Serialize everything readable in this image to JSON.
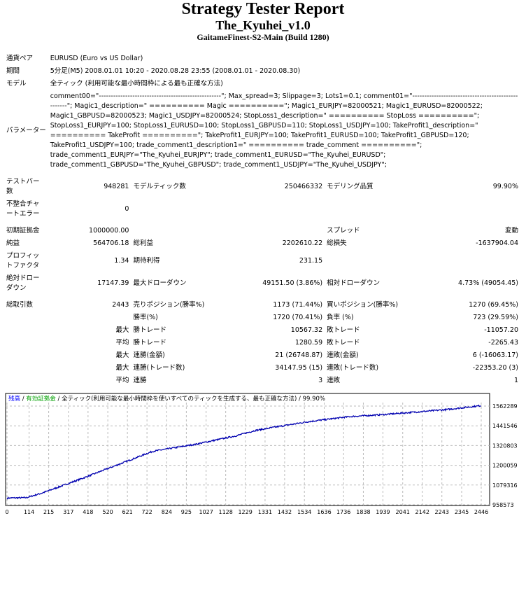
{
  "header": {
    "title": "Strategy Tester Report",
    "ea_name": "The_Kyuhei_v1.0",
    "server": "GaitameFinest-S2-Main (Build 1280)"
  },
  "info": [
    {
      "label": "通貨ペア",
      "value": "EURUSD (Euro vs US Dollar)"
    },
    {
      "label": "期間",
      "value": "5分足(M5) 2008.01.01 10:20 - 2020.08.28 23:55 (2008.01.01 - 2020.08.30)"
    },
    {
      "label": "モデル",
      "value": "全ティック (利用可能な最小時間枠による最も正確な方法)"
    },
    {
      "label": "パラメーター",
      "value": "comment00=\"---------------------------------------------------\"; Max_spread=3; Slippage=3; Lots1=0.1; comment01=\"---------------------------------------------------\"; Magic1_description=\" ========== Magic ==========\"; Magic1_EURJPY=82000521; Magic1_EURUSD=82000522; Magic1_GBPUSD=82000523; Magic1_USDJPY=82000524; StopLoss1_description=\" ========== StopLoss ==========\"; StopLoss1_EURJPY=100; StopLoss1_EURUSD=100; StopLoss1_GBPUSD=110; StopLoss1_USDJPY=100; TakeProfit1_description=\" ========== TakeProfit ==========\"; TakeProfit1_EURJPY=100; TakeProfit1_EURUSD=100; TakeProfit1_GBPUSD=120; TakeProfit1_USDJPY=100; trade_comment1_description1=\" ========== trade_comment ==========\"; trade_comment1_EURJPY=\"The_Kyuhei_EURJPY\"; trade_comment1_EURUSD=\"The_Kyuhei_EURUSD\"; trade_comment1_GBPUSD=\"The_Kyuhei_GBPUSD\"; trade_comment1_USDJPY=\"The_Kyuhei_USDJPY\";"
    }
  ],
  "stats": {
    "bars_label": "テストバー数",
    "bars": "948281",
    "ticks_label": "モデルティック数",
    "ticks": "250466332",
    "quality_label": "モデリング品質",
    "quality": "99.90%",
    "mismatch_label": "不整合チャートエラー",
    "mismatch": "0",
    "deposit_label": "初期証拠金",
    "deposit": "1000000.00",
    "spread_label": "スプレッド",
    "spread": "変動",
    "net_label": "純益",
    "net": "564706.18",
    "gross_profit_label": "総利益",
    "gross_profit": "2202610.22",
    "gross_loss_label": "総損失",
    "gross_loss": "-1637904.04",
    "pf_label": "プロフィットファクタ",
    "pf": "1.34",
    "expected_label": "期待利得",
    "expected": "231.15",
    "abs_dd_label": "絶対ドローダウン",
    "abs_dd": "17147.39",
    "max_dd_label": "最大ドローダウン",
    "max_dd": "49151.50 (3.86%)",
    "rel_dd_label": "相対ドローダウン",
    "rel_dd": "4.73% (49054.45)",
    "total_label": "総取引数",
    "total": "2443",
    "short_label": "売りポジション(勝率%)",
    "short": "1173 (71.44%)",
    "long_label": "買いポジション(勝率%)",
    "long": "1270 (69.45%)",
    "win_label": "勝率(%)",
    "win": "1720 (70.41%)",
    "loss_label": "負率 (%)",
    "loss": "723 (29.59%)",
    "max": "最大",
    "avg": "平均",
    "largest_win_label": "勝トレード",
    "largest_win": "10567.32",
    "largest_loss_label": "敗トレード",
    "largest_loss": "-11057.20",
    "avg_win_label": "勝トレード",
    "avg_win": "1280.59",
    "avg_loss_label": "敗トレード",
    "avg_loss": "-2265.43",
    "cons_win_amt_label": "連勝(金額)",
    "cons_win_amt": "21 (26748.87)",
    "cons_loss_amt_label": "連敗(金額)",
    "cons_loss_amt": "6 (-16063.17)",
    "cons_win_cnt_label": "連勝(トレード数)",
    "cons_win_cnt": "34147.95 (15)",
    "cons_loss_cnt_label": "連敗(トレード数)",
    "cons_loss_cnt": "-22353.20 (3)",
    "avg_cons_win_label": "連勝",
    "avg_cons_win": "3",
    "avg_cons_loss_label": "連敗",
    "avg_cons_loss": "1"
  },
  "chart_data": {
    "type": "line",
    "legend": {
      "balance": "残高",
      "equity": "有効証拠金",
      "sep": " / ",
      "model": "全ティック(利用可能な最小時間枠を使いすべてのティックを生成する、最も正確な方法)",
      "quality": "99.90%"
    },
    "colors": {
      "balance": "#0000b0",
      "balance_label": "#0000ff",
      "equity_label": "#00a000"
    },
    "x_ticks": [
      0,
      114,
      215,
      317,
      418,
      520,
      621,
      722,
      824,
      925,
      1027,
      1128,
      1229,
      1331,
      1432,
      1534,
      1636,
      1736,
      1838,
      1939,
      2041,
      2142,
      2243,
      2345,
      2446
    ],
    "y_ticks": [
      958573,
      1079316,
      1200059,
      1320803,
      1441546,
      1562289
    ],
    "xlim": [
      0,
      2446
    ],
    "ylim": [
      958573,
      1562289
    ],
    "grid": true,
    "series": [
      {
        "x": [
          0,
          100,
          180,
          280,
          400,
          520,
          750,
          970,
          1180,
          1280,
          1390,
          1560,
          1770,
          1950,
          2260,
          2443
        ],
        "y": [
          1000000,
          1002000,
          1030000,
          1073000,
          1125000,
          1180000,
          1285000,
          1328000,
          1380000,
          1413000,
          1435000,
          1468000,
          1498000,
          1511000,
          1540000,
          1564706
        ]
      }
    ]
  }
}
